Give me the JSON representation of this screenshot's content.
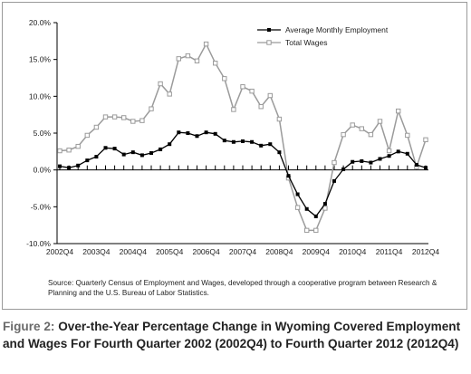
{
  "chart_data": {
    "type": "line",
    "x": [
      "2002Q4",
      "2003Q1",
      "2003Q2",
      "2003Q3",
      "2003Q4",
      "2004Q1",
      "2004Q2",
      "2004Q3",
      "2004Q4",
      "2005Q1",
      "2005Q2",
      "2005Q3",
      "2005Q4",
      "2006Q1",
      "2006Q2",
      "2006Q3",
      "2006Q4",
      "2007Q1",
      "2007Q2",
      "2007Q3",
      "2007Q4",
      "2008Q1",
      "2008Q2",
      "2008Q3",
      "2008Q4",
      "2009Q1",
      "2009Q2",
      "2009Q3",
      "2009Q4",
      "2010Q1",
      "2010Q2",
      "2010Q3",
      "2010Q4",
      "2011Q1",
      "2011Q2",
      "2011Q3",
      "2011Q4",
      "2012Q1",
      "2012Q2",
      "2012Q3",
      "2012Q4"
    ],
    "x_tick_labels": [
      "2002Q4",
      "2003Q4",
      "2004Q4",
      "2005Q4",
      "2006Q4",
      "2007Q4",
      "2008Q4",
      "2009Q4",
      "2010Q4",
      "2011Q4",
      "2012Q4"
    ],
    "series": [
      {
        "name": "Average Monthly Employment",
        "color": "#000000",
        "marker": "square-filled",
        "values": [
          0.5,
          0.3,
          0.6,
          1.3,
          1.8,
          3.0,
          2.9,
          2.1,
          2.4,
          2.0,
          2.3,
          2.8,
          3.5,
          5.1,
          5.0,
          4.6,
          5.1,
          4.9,
          4.0,
          3.8,
          3.9,
          3.8,
          3.3,
          3.5,
          2.4,
          -0.8,
          -3.3,
          -5.3,
          -6.3,
          -4.6,
          -1.5,
          0.1,
          1.1,
          1.2,
          1.0,
          1.5,
          1.9,
          2.5,
          2.2,
          0.7,
          0.3
        ]
      },
      {
        "name": "Total Wages",
        "color": "#9b9b9b",
        "marker": "square-hollow",
        "values": [
          2.6,
          2.7,
          3.2,
          4.7,
          5.8,
          7.2,
          7.2,
          7.1,
          6.6,
          6.7,
          8.3,
          11.7,
          10.3,
          15.1,
          15.5,
          14.8,
          17.1,
          14.5,
          12.4,
          8.2,
          11.3,
          10.7,
          8.6,
          10.1,
          6.9,
          -1.1,
          -5.1,
          -8.2,
          -8.2,
          -5.2,
          1.0,
          4.8,
          6.1,
          5.6,
          4.8,
          6.6,
          2.6,
          8.0,
          4.7,
          0.4,
          4.1
        ]
      }
    ],
    "y_ticks": [
      "20.0%",
      "15.0%",
      "10.0%",
      "5.0%",
      "0.0%",
      "-5.0%",
      "-10.0%"
    ],
    "ylim": [
      -10,
      20
    ],
    "legend_position": "top-right",
    "grid": false
  },
  "source_note": "Source: Quarterly Census of Employment and Wages, developed through a cooperative program between Research & Planning and the U.S. Bureau of Labor Statistics.",
  "caption": {
    "label": "Figure 2:",
    "text": "Over-the-Year Percentage Change in Wyoming Covered Employment and Wages For Fourth Quarter 2002 (2002Q4) to Fourth Quarter 2012 (2012Q4)",
    "label_color": "#6a6a6a"
  }
}
